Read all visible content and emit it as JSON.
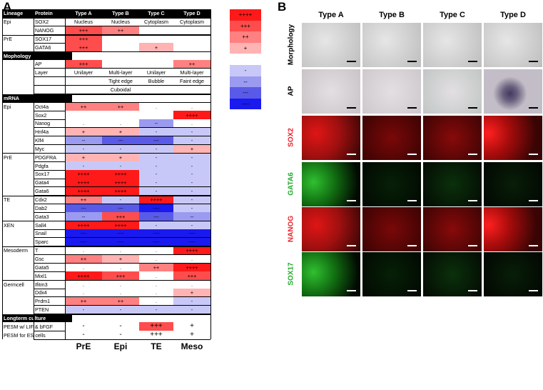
{
  "panel_labels": {
    "a": "A",
    "b": "B"
  },
  "table": {
    "header": [
      "Lineage",
      "Protein",
      "Type A",
      "Type B",
      "Type C",
      "Type D"
    ],
    "rows": [
      {
        "kind": "data",
        "c0": "Epi",
        "c1": "SOX2",
        "cells": [
          {
            "t": "Nucleus",
            "v": "w"
          },
          {
            "t": "Nucleus",
            "v": "w"
          },
          {
            "t": "Cytoplasm",
            "v": "w"
          },
          {
            "t": "Cytoplasm",
            "v": "w"
          }
        ]
      },
      {
        "kind": "data",
        "c0": "",
        "c1": "NANOG",
        "cells": [
          {
            "t": "+++",
            "v": "+3"
          },
          {
            "t": "++",
            "v": "+2"
          },
          {
            "t": "",
            "v": "w"
          },
          {
            "t": "",
            "v": "w"
          }
        ]
      },
      {
        "kind": "data",
        "c0": "PrE",
        "c1": "SOX17",
        "cells": [
          {
            "t": "+++",
            "v": "+3"
          },
          {
            "t": "",
            "v": "w"
          },
          {
            "t": "",
            "v": "w"
          },
          {
            "t": "",
            "v": "w"
          }
        ]
      },
      {
        "kind": "data",
        "c0": "",
        "c1": "GATA6",
        "cells": [
          {
            "t": "+++",
            "v": "+3"
          },
          {
            "t": "",
            "v": "w"
          },
          {
            "t": "+",
            "v": "+1"
          },
          {
            "t": "",
            "v": "w"
          }
        ]
      },
      {
        "kind": "section",
        "c0": "Mophology"
      },
      {
        "kind": "data",
        "c0": "",
        "c1": "AP",
        "cells": [
          {
            "t": "+++",
            "v": "+3"
          },
          {
            "t": "",
            "v": "w"
          },
          {
            "t": "",
            "v": "w"
          },
          {
            "t": "++",
            "v": "+2"
          }
        ]
      },
      {
        "kind": "data",
        "c0": "",
        "c1": "Layer",
        "cells": [
          {
            "t": "Unilayer",
            "v": "w"
          },
          {
            "t": "Multi-layer",
            "v": "w"
          },
          {
            "t": "Unilayer",
            "v": "w"
          },
          {
            "t": "Multi-layer",
            "v": "w"
          }
        ]
      },
      {
        "kind": "data",
        "c0": "",
        "c1": "",
        "cells": [
          {
            "t": "",
            "v": "w"
          },
          {
            "t": "Tight edge",
            "v": "w"
          },
          {
            "t": "Bubble",
            "v": "w"
          },
          {
            "t": "Faint edge",
            "v": "w"
          }
        ]
      },
      {
        "kind": "data",
        "c0": "",
        "c1": "",
        "cells": [
          {
            "t": "",
            "v": "w"
          },
          {
            "t": "Cuboidal",
            "v": "w"
          },
          {
            "t": "",
            "v": "w"
          },
          {
            "t": "",
            "v": "w"
          }
        ]
      },
      {
        "kind": "section",
        "c0": "mRNA"
      },
      {
        "kind": "data",
        "c0": "Epi",
        "c1": "Oct4a",
        "cells": [
          {
            "t": "++",
            "v": "+2"
          },
          {
            "t": "++",
            "v": "+2"
          },
          {
            "t": ".",
            "v": "w"
          },
          {
            "t": ".",
            "v": "w"
          }
        ]
      },
      {
        "kind": "data",
        "c0": "",
        "c1": "Sox2",
        "cells": [
          {
            "t": "",
            "v": "w"
          },
          {
            "t": "",
            "v": "w"
          },
          {
            "t": "",
            "v": "w"
          },
          {
            "t": "++++",
            "v": "+4"
          }
        ]
      },
      {
        "kind": "data",
        "c0": "",
        "c1": "Nanog",
        "cells": [
          {
            "t": ".",
            "v": "w"
          },
          {
            "t": ".",
            "v": "w"
          },
          {
            "t": "--",
            "v": "-2"
          },
          {
            "t": ".",
            "v": "w"
          }
        ]
      },
      {
        "kind": "data",
        "c0": "",
        "c1": "Hnf4a",
        "cells": [
          {
            "t": "+",
            "v": "+1"
          },
          {
            "t": "+",
            "v": "+1"
          },
          {
            "t": "-",
            "v": "-1"
          },
          {
            "t": "-",
            "v": "-1"
          }
        ]
      },
      {
        "kind": "data",
        "c0": "",
        "c1": "Klf4",
        "cells": [
          {
            "t": "--",
            "v": "-2"
          },
          {
            "t": "---",
            "v": "-3"
          },
          {
            "t": "---",
            "v": "-3"
          },
          {
            "t": "-",
            "v": "-1"
          }
        ]
      },
      {
        "kind": "data",
        "c0": "",
        "c1": "Myc",
        "cells": [
          {
            "t": "-",
            "v": "-1"
          },
          {
            "t": "-",
            "v": "-1"
          },
          {
            "t": "-",
            "v": "-1"
          },
          {
            "t": "+",
            "v": "+1"
          }
        ]
      },
      {
        "kind": "data",
        "c0": "PrE",
        "c1": "PDGFRA",
        "cells": [
          {
            "t": "+",
            "v": "+1"
          },
          {
            "t": "+",
            "v": "+1"
          },
          {
            "t": "-",
            "v": "-1"
          },
          {
            "t": "-",
            "v": "-1"
          }
        ]
      },
      {
        "kind": "data",
        "c0": "",
        "c1": "Pdgfa",
        "cells": [
          {
            "t": "-",
            "v": "-1"
          },
          {
            "t": "-",
            "v": "-1"
          },
          {
            "t": "-",
            "v": "-1"
          },
          {
            "t": "-",
            "v": "-1"
          }
        ]
      },
      {
        "kind": "data",
        "c0": "",
        "c1": "Sox17",
        "cells": [
          {
            "t": "++++",
            "v": "+4"
          },
          {
            "t": "++++",
            "v": "+4"
          },
          {
            "t": "-",
            "v": "-1"
          },
          {
            "t": "-",
            "v": "-1"
          }
        ]
      },
      {
        "kind": "data",
        "c0": "",
        "c1": "Gata4",
        "cells": [
          {
            "t": "++++",
            "v": "+4"
          },
          {
            "t": "++++",
            "v": "+4"
          },
          {
            "t": "-",
            "v": "-1"
          },
          {
            "t": "-",
            "v": "-1"
          }
        ]
      },
      {
        "kind": "data",
        "c0": "",
        "c1": "Gata6",
        "cells": [
          {
            "t": "++++",
            "v": "+4"
          },
          {
            "t": "++++",
            "v": "+4"
          },
          {
            "t": "-",
            "v": "-1"
          },
          {
            "t": "-",
            "v": "-1"
          }
        ]
      },
      {
        "kind": "data",
        "c0": "TE",
        "c1": "Cdx2",
        "cells": [
          {
            "t": "++",
            "v": "+2"
          },
          {
            "t": "-",
            "v": "-1"
          },
          {
            "t": "++++",
            "v": "+4"
          },
          {
            "t": "-",
            "v": "-1"
          }
        ]
      },
      {
        "kind": "data",
        "c0": "",
        "c1": "Dab2",
        "cells": [
          {
            "t": "---",
            "v": "-3"
          },
          {
            "t": "---",
            "v": "-3"
          },
          {
            "t": "----",
            "v": "-4"
          },
          {
            "t": "-",
            "v": "-1"
          }
        ]
      },
      {
        "kind": "data",
        "c0": "",
        "c1": "Gata3",
        "cells": [
          {
            "t": "--",
            "v": "-2"
          },
          {
            "t": "+++",
            "v": "+3"
          },
          {
            "t": "---",
            "v": "-3"
          },
          {
            "t": "--",
            "v": "-2"
          }
        ]
      },
      {
        "kind": "data",
        "c0": "XEN",
        "c1": "Sall4",
        "cells": [
          {
            "t": "++++",
            "v": "+4"
          },
          {
            "t": "++++",
            "v": "+4"
          },
          {
            "t": "-",
            "v": "-1"
          },
          {
            "t": "-",
            "v": "-1"
          }
        ]
      },
      {
        "kind": "data",
        "c0": "",
        "c1": "Snail",
        "cells": [
          {
            "t": "----",
            "v": "-4"
          },
          {
            "t": "----",
            "v": "-4"
          },
          {
            "t": "----",
            "v": "-4"
          },
          {
            "t": "----",
            "v": "-4"
          }
        ]
      },
      {
        "kind": "data",
        "c0": "",
        "c1": "Sparc",
        "cells": [
          {
            "t": "----",
            "v": "-4"
          },
          {
            "t": "----",
            "v": "-4"
          },
          {
            "t": "----",
            "v": "-4"
          },
          {
            "t": "----",
            "v": "-4"
          }
        ]
      },
      {
        "kind": "data",
        "c0": "Mesoderm",
        "c1": "T",
        "cells": [
          {
            "t": ".",
            "v": "w"
          },
          {
            "t": ".",
            "v": "w"
          },
          {
            "t": ".",
            "v": "w"
          },
          {
            "t": "++++",
            "v": "+4"
          }
        ]
      },
      {
        "kind": "data",
        "c0": "",
        "c1": "Gsc",
        "cells": [
          {
            "t": "++",
            "v": "+2"
          },
          {
            "t": "+",
            "v": "+1"
          },
          {
            "t": ".",
            "v": "w"
          },
          {
            "t": ".",
            "v": "w"
          }
        ]
      },
      {
        "kind": "data",
        "c0": "",
        "c1": "Gata5",
        "cells": [
          {
            "t": ".",
            "v": "w"
          },
          {
            "t": ".",
            "v": "w"
          },
          {
            "t": "++",
            "v": "+2"
          },
          {
            "t": "++++",
            "v": "+4"
          }
        ]
      },
      {
        "kind": "data",
        "c0": "",
        "c1": "Mixl1",
        "cells": [
          {
            "t": "++++",
            "v": "+4"
          },
          {
            "t": "+++",
            "v": "+3"
          },
          {
            "t": ".",
            "v": "w"
          },
          {
            "t": "+++",
            "v": "+3"
          }
        ]
      },
      {
        "kind": "data",
        "c0": "Germcell",
        "c1": "Ifitm3",
        "cells": [
          {
            "t": ".",
            "v": "w"
          },
          {
            "t": ".",
            "v": "w"
          },
          {
            "t": ".",
            "v": "w"
          },
          {
            "t": ".",
            "v": "w"
          }
        ]
      },
      {
        "kind": "data",
        "c0": "",
        "c1": "Ddx4",
        "cells": [
          {
            "t": ".",
            "v": "w"
          },
          {
            "t": ".",
            "v": "w"
          },
          {
            "t": ".",
            "v": "w"
          },
          {
            "t": "+",
            "v": "+1"
          }
        ]
      },
      {
        "kind": "data",
        "c0": "",
        "c1": "Prdm1",
        "cells": [
          {
            "t": "++",
            "v": "+2"
          },
          {
            "t": "++",
            "v": "+2"
          },
          {
            "t": ".",
            "v": "w"
          },
          {
            "t": "-",
            "v": "-1"
          }
        ]
      },
      {
        "kind": "data",
        "c0": "",
        "c1": "PTEN",
        "cells": [
          {
            "t": "-",
            "v": "-1"
          },
          {
            "t": "-",
            "v": "-1"
          },
          {
            "t": "-",
            "v": "-1"
          },
          {
            "t": "-",
            "v": "-1"
          }
        ]
      },
      {
        "kind": "section",
        "c0": "Longterm culture"
      },
      {
        "kind": "wide",
        "c0": "PESM w/ LIF & bFGF",
        "cells": [
          {
            "t": "-",
            "v": "w"
          },
          {
            "t": "-",
            "v": "w"
          },
          {
            "t": "+++",
            "v": "+3"
          },
          {
            "t": "+",
            "v": "w"
          }
        ]
      },
      {
        "kind": "wide",
        "c0": "PESM for ES cells",
        "cells": [
          {
            "t": "-",
            "v": "w"
          },
          {
            "t": "-",
            "v": "w"
          },
          {
            "t": "+++",
            "v": "w"
          },
          {
            "t": "+",
            "v": "w"
          }
        ]
      }
    ],
    "footer": [
      "PrE",
      "Epi",
      "TE",
      "Meso"
    ]
  },
  "legend": [
    {
      "t": "++++",
      "v": "+4"
    },
    {
      "t": "+++",
      "v": "+3"
    },
    {
      "t": "++",
      "v": "+2"
    },
    {
      "t": "+",
      "v": "+1"
    },
    {
      "t": "",
      "v": "w"
    },
    {
      "t": "-",
      "v": "-1"
    },
    {
      "t": "--",
      "v": "-2"
    },
    {
      "t": "---",
      "v": "-3"
    },
    {
      "t": "----",
      "v": "-4"
    }
  ],
  "colors": {
    "+4": "#ff1a1a",
    "+3": "#ff4d4d",
    "+2": "#ff8080",
    "+1": "#ffb3b3",
    "w": "#ffffff",
    "-1": "#c8c8f8",
    "-2": "#9a9af0",
    "-3": "#5a5ae8",
    "-4": "#1a1aee"
  },
  "panel_b": {
    "columns": [
      "Type A",
      "Type B",
      "Type C",
      "Type D"
    ],
    "rows": [
      {
        "label": "Morphology",
        "label_color": "#000000",
        "kind": "bright"
      },
      {
        "label": "AP",
        "label_color": "#000000",
        "kind": "ap"
      },
      {
        "label": "SOX2",
        "label_color": "#e8202a",
        "kind": "red"
      },
      {
        "label": "GATA6",
        "label_color": "#1faa2a",
        "kind": "green"
      },
      {
        "label": "NANOG",
        "label_color": "#e8202a",
        "kind": "red"
      },
      {
        "label": "SOX17",
        "label_color": "#1faa2a",
        "kind": "green"
      }
    ]
  }
}
